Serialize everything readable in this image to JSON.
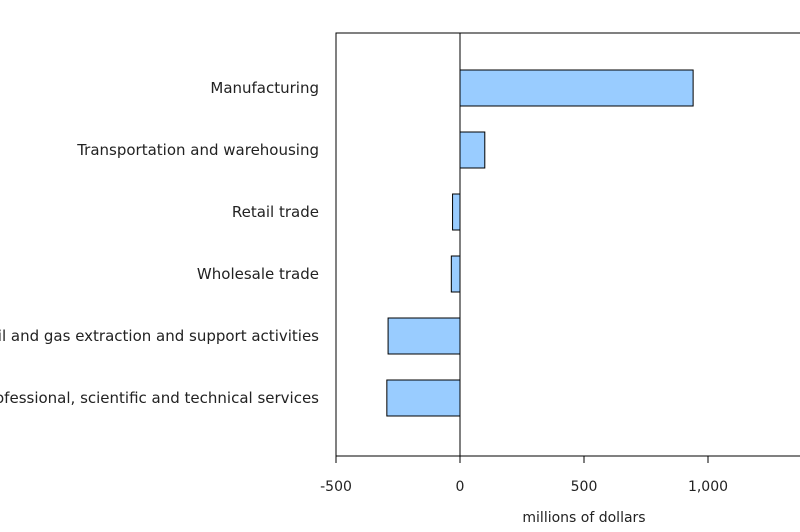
{
  "chart_data": {
    "type": "bar",
    "orientation": "horizontal",
    "categories": [
      "Manufacturing",
      "Transportation and warehousing",
      "Retail trade",
      "Wholesale trade",
      "Mining, quarrying, and oil and gas extraction and support activities",
      "Professional, scientific and technical services"
    ],
    "values": [
      940,
      100,
      -30,
      -35,
      -290,
      -295
    ],
    "xlabel": "millions of dollars",
    "ylabel": "",
    "xlim": [
      -500,
      1350
    ],
    "xticks": [
      -500,
      0,
      500,
      1000
    ],
    "xtick_labels": [
      "-500",
      "0",
      "500",
      "1,000"
    ],
    "grid": false,
    "legend": "none",
    "bar_color": "#99ccff",
    "bar_stroke": "#000000"
  }
}
